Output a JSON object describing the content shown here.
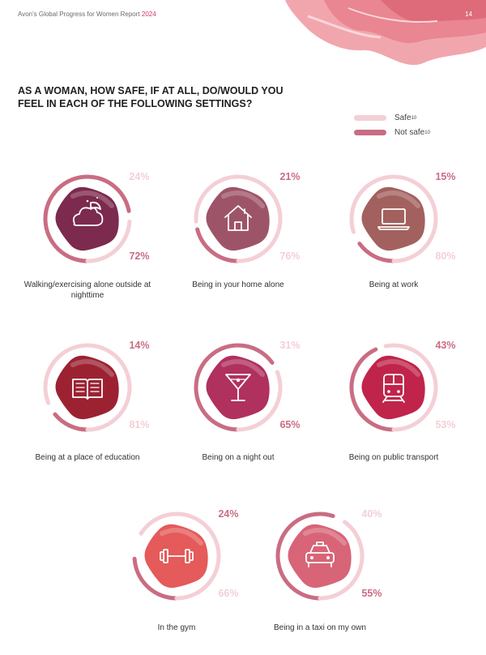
{
  "header": {
    "report_title": "Avon's Global Progress for Women Report",
    "report_year": "2024",
    "page_number": "14"
  },
  "question": "AS A WOMAN, HOW SAFE, IF AT ALL, DO/WOULD YOU FEEL IN EACH OF THE FOLLOWING SETTINGS?",
  "legend": {
    "safe_label": "Safe",
    "safe_note": "10",
    "not_safe_label": "Not safe",
    "not_safe_note": "10",
    "safe_color": "#f4cfd6",
    "not_safe_color": "#c96d83"
  },
  "chart_data": {
    "type": "donut-gauges",
    "title": "AS A WOMAN, HOW SAFE, IF AT ALL, DO/WOULD YOU FEEL IN EACH OF THE FOLLOWING SETTINGS?",
    "series_names": [
      "Safe",
      "Not safe"
    ],
    "unit": "%",
    "items": [
      {
        "label": "Walking/exercising alone outside at nighttime",
        "safe": 24,
        "not_safe": 72,
        "safe_text": "24%",
        "not_safe_text": "72%",
        "icon": "cloud-moon-icon",
        "blob_color": "#7c2a4e"
      },
      {
        "label": "Being in your home alone",
        "safe": 76,
        "not_safe": 21,
        "safe_text": "76%",
        "not_safe_text": "21%",
        "icon": "house-icon",
        "blob_color": "#9e5468"
      },
      {
        "label": "Being at work",
        "safe": 80,
        "not_safe": 15,
        "safe_text": "80%",
        "not_safe_text": "15%",
        "icon": "laptop-icon",
        "blob_color": "#a2615e"
      },
      {
        "label": "Being at a place of education",
        "safe": 81,
        "not_safe": 14,
        "safe_text": "81%",
        "not_safe_text": "14%",
        "icon": "book-icon",
        "blob_color": "#9c2232"
      },
      {
        "label": "Being on a night out",
        "safe": 31,
        "not_safe": 65,
        "safe_text": "31%",
        "not_safe_text": "65%",
        "icon": "cocktail-icon",
        "blob_color": "#b0305e"
      },
      {
        "label": "Being on public transport",
        "safe": 53,
        "not_safe": 43,
        "safe_text": "53%",
        "not_safe_text": "43%",
        "icon": "train-icon",
        "blob_color": "#c0244a"
      },
      {
        "label": "In the gym",
        "safe": 66,
        "not_safe": 24,
        "safe_text": "66%",
        "not_safe_text": "24%",
        "icon": "dumbbell-icon",
        "blob_color": "#e55a5a"
      },
      {
        "label": "Being in a taxi on my own",
        "safe": 40,
        "not_safe": 55,
        "safe_text": "40%",
        "not_safe_text": "55%",
        "icon": "taxi-icon",
        "blob_color": "#d86478"
      }
    ]
  }
}
